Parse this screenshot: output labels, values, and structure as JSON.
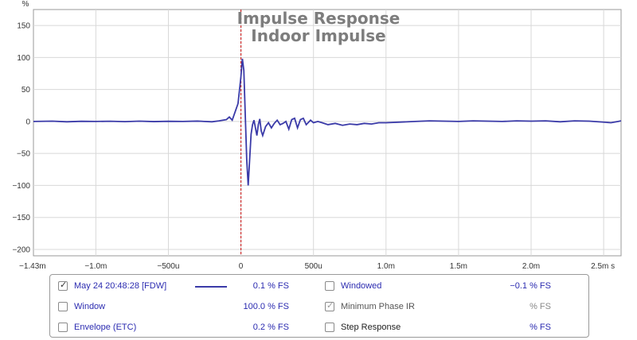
{
  "chart_data": {
    "type": "line",
    "title": "Impulse Response",
    "subtitle": "Indoor Impulse",
    "ylabel": "%",
    "xlabel": "s",
    "xlim": [
      -0.00143,
      0.00262
    ],
    "ylim": [
      -210,
      175
    ],
    "yticks": [
      150,
      100,
      50,
      0,
      -50,
      -100,
      -150,
      -200
    ],
    "ytick_labels": [
      "150",
      "100",
      "50",
      "0",
      "−50",
      "−100",
      "−150",
      "−200"
    ],
    "xticks": [
      -0.00143,
      -0.001,
      -0.0005,
      0,
      0.0005,
      0.001,
      0.0015,
      0.002,
      0.0025
    ],
    "xtick_labels": [
      "−1.43m",
      "−1.0m",
      "−500u",
      "0",
      "500u",
      "1.0m",
      "1.5m",
      "2.0m",
      "2.5m s"
    ],
    "grid": true,
    "marker_x": 0,
    "series": [
      {
        "name": "May 24 20:48:28 [FDW]",
        "color": "#3a3aa8",
        "points": [
          [
            -0.00143,
            0
          ],
          [
            -0.0013,
            0.5
          ],
          [
            -0.0012,
            -0.5
          ],
          [
            -0.0011,
            0.3
          ],
          [
            -0.001,
            0
          ],
          [
            -0.0009,
            0.4
          ],
          [
            -0.0008,
            -0.3
          ],
          [
            -0.0007,
            0.5
          ],
          [
            -0.0006,
            -0.2
          ],
          [
            -0.0005,
            0.3
          ],
          [
            -0.0004,
            0
          ],
          [
            -0.0003,
            0.6
          ],
          [
            -0.0002,
            -0.5
          ],
          [
            -0.00015,
            1
          ],
          [
            -0.0001,
            3
          ],
          [
            -8e-05,
            7
          ],
          [
            -6e-05,
            2
          ],
          [
            -4e-05,
            15
          ],
          [
            -2e-05,
            28
          ],
          [
            0,
            70
          ],
          [
            1e-05,
            98
          ],
          [
            2e-05,
            80
          ],
          [
            3e-05,
            10
          ],
          [
            4e-05,
            -60
          ],
          [
            5e-05,
            -100
          ],
          [
            6e-05,
            -60
          ],
          [
            7e-05,
            -20
          ],
          [
            8e-05,
            -5
          ],
          [
            9e-05,
            2
          ],
          [
            0.0001,
            -10
          ],
          [
            0.00011,
            -22
          ],
          [
            0.00012,
            -5
          ],
          [
            0.00013,
            4
          ],
          [
            0.00014,
            -15
          ],
          [
            0.00015,
            -22
          ],
          [
            0.00017,
            -8
          ],
          [
            0.00019,
            -2
          ],
          [
            0.00021,
            -10
          ],
          [
            0.00023,
            -3
          ],
          [
            0.00025,
            2
          ],
          [
            0.00027,
            -5
          ],
          [
            0.00029,
            -3
          ],
          [
            0.00031,
            0
          ],
          [
            0.00033,
            -12
          ],
          [
            0.00035,
            3
          ],
          [
            0.00037,
            5
          ],
          [
            0.00039,
            -10
          ],
          [
            0.00041,
            3
          ],
          [
            0.00043,
            5
          ],
          [
            0.00045,
            -5
          ],
          [
            0.00048,
            2
          ],
          [
            0.0005,
            -2
          ],
          [
            0.00053,
            0
          ],
          [
            0.00056,
            -2
          ],
          [
            0.0006,
            -5
          ],
          [
            0.00065,
            -3
          ],
          [
            0.0007,
            -6
          ],
          [
            0.00075,
            -4
          ],
          [
            0.0008,
            -5
          ],
          [
            0.00085,
            -3
          ],
          [
            0.0009,
            -4
          ],
          [
            0.00095,
            -2
          ],
          [
            0.001,
            -2
          ],
          [
            0.0011,
            -1
          ],
          [
            0.0012,
            0
          ],
          [
            0.0013,
            1
          ],
          [
            0.0014,
            0.5
          ],
          [
            0.0015,
            0
          ],
          [
            0.0016,
            1
          ],
          [
            0.0017,
            0.5
          ],
          [
            0.0018,
            0
          ],
          [
            0.0019,
            1
          ],
          [
            0.002,
            0.5
          ],
          [
            0.0021,
            1
          ],
          [
            0.0022,
            -0.5
          ],
          [
            0.0023,
            1
          ],
          [
            0.0024,
            0.5
          ],
          [
            0.0025,
            -1
          ],
          [
            0.00255,
            -2
          ],
          [
            0.0026,
            0
          ],
          [
            0.00262,
            1
          ]
        ]
      }
    ]
  },
  "legend": {
    "items": [
      {
        "label": "May 24 20:48:28 [FDW]",
        "checked": true,
        "value": "0.1",
        "unit": "% FS",
        "has_swatch": true
      },
      {
        "label": "Windowed",
        "checked": false,
        "value": "−0.1",
        "unit": "% FS"
      },
      {
        "label": "Window",
        "checked": false,
        "value": "100.0",
        "unit": "% FS"
      },
      {
        "label": "Minimum Phase IR",
        "checked": true,
        "value": "",
        "unit": "% FS"
      },
      {
        "label": "Envelope (ETC)",
        "checked": false,
        "value": "0.2",
        "unit": "% FS"
      },
      {
        "label": "Step Response",
        "checked": false,
        "value": "",
        "unit": "% FS"
      }
    ]
  }
}
